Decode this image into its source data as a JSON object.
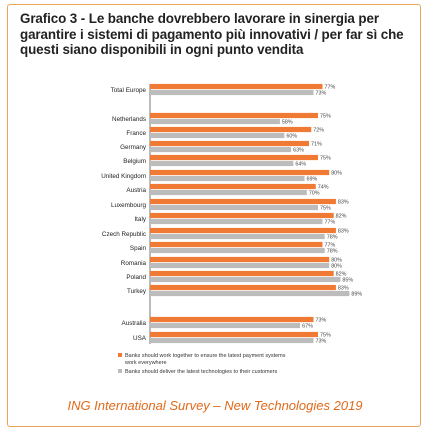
{
  "title": "Grafico 3 - Le banche dovrebbero lavorare in sinergia per garantire i sistemi di pagamento più innovativi / per far sì che questi siano disponibili in ogni punto vendita",
  "footer": "ING International Survey – New Technologies 2019",
  "colors": {
    "orange": "#f07a33",
    "grey": "#bcbcbc",
    "frame": "#e9a35a",
    "footer": "#e06a1b"
  },
  "chart_data": {
    "type": "bar",
    "orientation": "horizontal",
    "value_suffix": "%",
    "xlim": [
      0,
      100
    ],
    "grid": false,
    "legend_position": "bottom-left",
    "categories": [
      "Total Europe",
      "Netherlands",
      "France",
      "Germany",
      "Belgium",
      "United Kingdom",
      "Austria",
      "Luxembourg",
      "Italy",
      "Czech Republic",
      "Spain",
      "Romania",
      "Poland",
      "Turkey",
      "Australia",
      "USA"
    ],
    "series": [
      {
        "name": "Banks should work together to ensure the latest payment systems work everywhere",
        "color": "#f07a33",
        "values": [
          77,
          75,
          72,
          71,
          75,
          80,
          74,
          83,
          82,
          83,
          77,
          80,
          82,
          83,
          73,
          75
        ]
      },
      {
        "name": "Banks should deliver the latest technologies to their customers",
        "color": "#bcbcbc",
        "values": [
          73,
          58,
          60,
          63,
          64,
          69,
          70,
          75,
          77,
          78,
          78,
          80,
          85,
          89,
          67,
          73
        ]
      }
    ]
  }
}
